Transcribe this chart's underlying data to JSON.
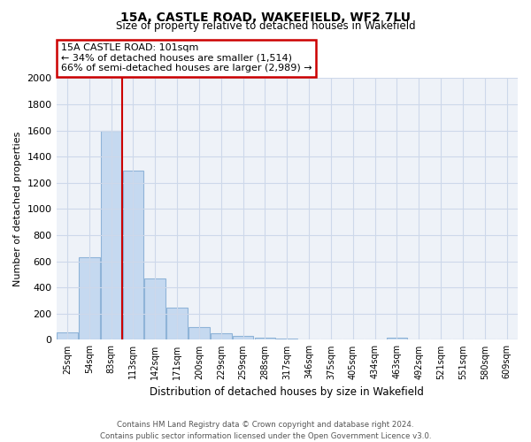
{
  "title_line1": "15A, CASTLE ROAD, WAKEFIELD, WF2 7LU",
  "title_line2": "Size of property relative to detached houses in Wakefield",
  "xlabel": "Distribution of detached houses by size in Wakefield",
  "ylabel": "Number of detached properties",
  "footer_line1": "Contains HM Land Registry data © Crown copyright and database right 2024.",
  "footer_line2": "Contains public sector information licensed under the Open Government Licence v3.0.",
  "bar_labels": [
    "25sqm",
    "54sqm",
    "83sqm",
    "113sqm",
    "142sqm",
    "171sqm",
    "200sqm",
    "229sqm",
    "259sqm",
    "288sqm",
    "317sqm",
    "346sqm",
    "375sqm",
    "405sqm",
    "434sqm",
    "463sqm",
    "492sqm",
    "521sqm",
    "551sqm",
    "580sqm",
    "609sqm"
  ],
  "bar_values": [
    55,
    630,
    1600,
    1290,
    470,
    245,
    100,
    47,
    28,
    18,
    12,
    0,
    0,
    0,
    0,
    18,
    0,
    0,
    0,
    0,
    0
  ],
  "bar_color": "#c5d9f0",
  "bar_edge_color": "#8fb4d8",
  "ylim": [
    0,
    2000
  ],
  "yticks": [
    0,
    200,
    400,
    600,
    800,
    1000,
    1200,
    1400,
    1600,
    1800,
    2000
  ],
  "annotation_title": "15A CASTLE ROAD: 101sqm",
  "annotation_line1": "← 34% of detached houses are smaller (1,514)",
  "annotation_line2": "66% of semi-detached houses are larger (2,989) →",
  "vline_x": 2.5,
  "vline_color": "#cc0000",
  "annotation_box_edge": "#cc0000",
  "background_color": "#ffffff",
  "grid_color": "#cdd8ea",
  "plot_bg_color": "#eef2f8"
}
